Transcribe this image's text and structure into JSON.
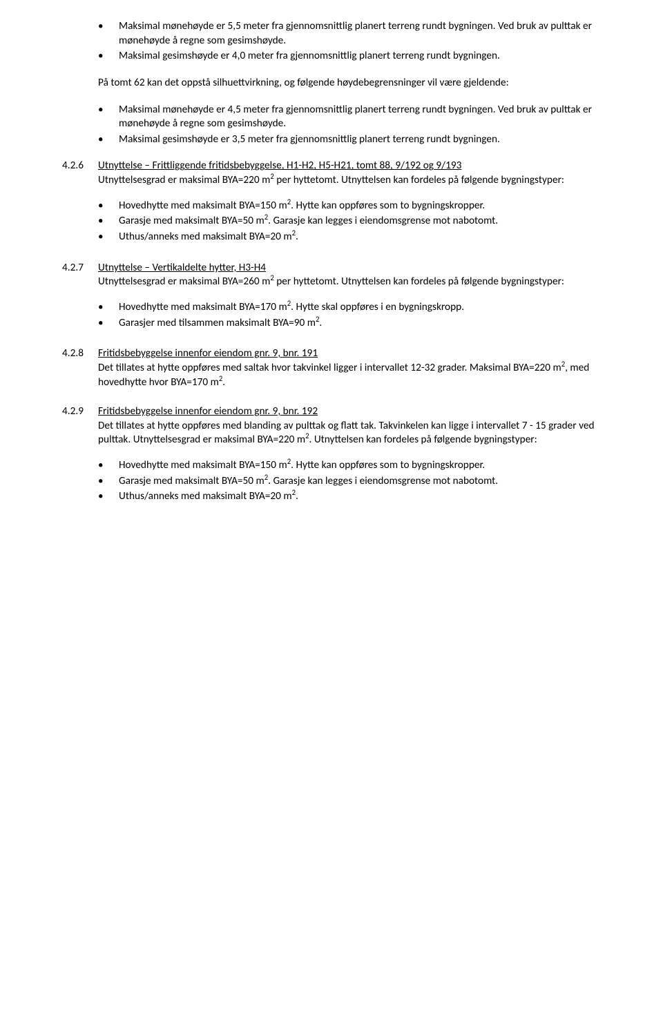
{
  "topBullets": [
    "Maksimal mønehøyde er 5,5 meter fra gjennomsnittlig planert terreng rundt bygningen. Ved bruk av pulttak er mønehøyde å regne som gesimshøyde.",
    "Maksimal gesimshøyde er 4,0 meter fra gjennomsnittlig planert terreng rundt bygningen."
  ],
  "midIntro": "På tomt 62 kan det oppstå silhuettvirkning, og følgende høydebegrensninger vil være gjeldende:",
  "midBullets": [
    "Maksimal mønehøyde er 4,5 meter fra gjennomsnittlig planert terreng rundt bygningen. Ved bruk av pulttak er mønehøyde å regne som gesimshøyde.",
    "Maksimal gesimshøyde er 3,5 meter fra gjennomsnittlig planert terreng rundt bygningen."
  ],
  "sections": [
    {
      "num": "4.2.6",
      "title": "Utnyttelse – Frittliggende fritidsbebyggelse, H1-H2, H5-H21, tomt 88, 9/192 og 9/193",
      "body": "Utnyttelsesgrad er maksimal BYA=220 m{SUP2} per hyttetomt. Utnyttelsen kan fordeles på følgende bygningstyper:",
      "bullets": [
        "Hovedhytte med maksimalt BYA=150 m{SUP2}. Hytte kan oppføres som to bygningskropper.",
        "Garasje med maksimalt BYA=50 m{SUP2}. Garasje kan legges i eiendomsgrense mot nabotomt.",
        "Uthus/anneks med maksimalt BYA=20 m{SUP2}."
      ]
    },
    {
      "num": "4.2.7",
      "title": "Utnyttelse – Vertikaldelte hytter, H3-H4",
      "body": "Utnyttelsesgrad er maksimal BYA=260 m{SUP2} per hyttetomt. Utnyttelsen kan fordeles på følgende bygningstyper:",
      "bullets": [
        "Hovedhytte med maksimalt BYA=170 m{SUP2}. Hytte skal oppføres i en bygningskropp.",
        "Garasjer med tilsammen maksimalt BYA=90 m{SUP2}."
      ]
    },
    {
      "num": "4.2.8",
      "title": "Fritidsbebyggelse innenfor eiendom gnr. 9, bnr. 191",
      "body": "Det tillates at hytte oppføres med saltak hvor takvinkel ligger i intervallet 12-32 grader. Maksimal BYA=220 m{SUP2}, med hovedhytte hvor BYA=170 m{SUP2}.",
      "bullets": []
    },
    {
      "num": "4.2.9",
      "title": "Fritidsbebyggelse innenfor eiendom gnr. 9, bnr. 192",
      "body": "Det tillates at hytte oppføres med blanding av pulttak og flatt tak. Takvinkelen kan ligge i intervallet 7 - 15 grader ved pulttak. Utnyttelsesgrad er maksimal BYA=220 m{SUP2}. Utnyttelsen kan fordeles på følgende bygningstyper:",
      "bullets": [
        "Hovedhytte med maksimalt BYA=150 m{SUP2}. Hytte kan oppføres som to bygningskropper.",
        "Garasje med maksimalt BYA=50 m{SUP2}. Garasje kan legges i eiendomsgrense mot nabotomt.",
        "Uthus/anneks med maksimalt BYA=20 m{SUP2}."
      ]
    }
  ]
}
